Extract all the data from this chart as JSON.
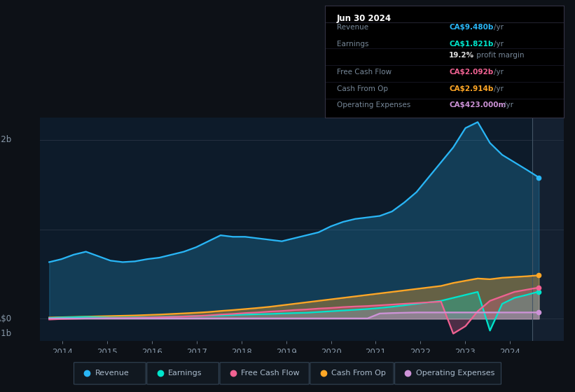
{
  "bg_color": "#0d1117",
  "plot_bg_color": "#0d1b2a",
  "ylim": [
    -1.5,
    13.5
  ],
  "xlim_start": 2013.5,
  "xlim_end": 2025.2,
  "x_ticks": [
    2014,
    2015,
    2016,
    2017,
    2018,
    2019,
    2020,
    2021,
    2022,
    2023,
    2024
  ],
  "hline_y": [
    0,
    6,
    12
  ],
  "revenue_color": "#29b6f6",
  "earnings_color": "#00e5cc",
  "fcf_color": "#f06292",
  "cashfromop_color": "#ffa726",
  "opex_color": "#ce93d8",
  "revenue": [
    3.8,
    4.0,
    4.3,
    4.5,
    4.2,
    3.9,
    3.8,
    3.85,
    4.0,
    4.1,
    4.3,
    4.5,
    4.8,
    5.2,
    5.6,
    5.5,
    5.5,
    5.4,
    5.3,
    5.2,
    5.4,
    5.6,
    5.8,
    6.2,
    6.5,
    6.7,
    6.8,
    6.9,
    7.2,
    7.8,
    8.5,
    9.5,
    10.5,
    11.5,
    12.8,
    13.2,
    11.8,
    11.0,
    10.5,
    10.0,
    9.48
  ],
  "earnings": [
    0.05,
    0.08,
    0.1,
    0.12,
    0.1,
    0.08,
    0.08,
    0.09,
    0.1,
    0.12,
    0.14,
    0.16,
    0.18,
    0.2,
    0.22,
    0.25,
    0.28,
    0.3,
    0.32,
    0.35,
    0.38,
    0.4,
    0.45,
    0.5,
    0.55,
    0.6,
    0.65,
    0.72,
    0.8,
    0.9,
    1.0,
    1.1,
    1.2,
    1.4,
    1.6,
    1.8,
    -0.8,
    1.0,
    1.4,
    1.6,
    1.821
  ],
  "fcf": [
    -0.05,
    -0.02,
    0.0,
    0.02,
    0.03,
    0.04,
    0.05,
    0.06,
    0.08,
    0.1,
    0.12,
    0.15,
    0.18,
    0.22,
    0.28,
    0.32,
    0.38,
    0.42,
    0.48,
    0.52,
    0.58,
    0.62,
    0.68,
    0.72,
    0.78,
    0.82,
    0.85,
    0.9,
    0.95,
    1.0,
    1.05,
    1.1,
    1.15,
    -1.0,
    -0.5,
    0.5,
    1.2,
    1.5,
    1.8,
    1.95,
    2.092
  ],
  "cashfromop": [
    0.08,
    0.1,
    0.12,
    0.14,
    0.16,
    0.18,
    0.2,
    0.22,
    0.25,
    0.28,
    0.32,
    0.36,
    0.4,
    0.45,
    0.52,
    0.58,
    0.65,
    0.72,
    0.8,
    0.9,
    1.0,
    1.1,
    1.2,
    1.3,
    1.4,
    1.5,
    1.6,
    1.7,
    1.8,
    1.9,
    2.0,
    2.1,
    2.2,
    2.4,
    2.55,
    2.7,
    2.65,
    2.75,
    2.8,
    2.85,
    2.914
  ],
  "opex": [
    0.02,
    0.02,
    0.02,
    0.02,
    0.02,
    0.02,
    0.02,
    0.02,
    0.02,
    0.02,
    0.02,
    0.02,
    0.02,
    0.02,
    0.02,
    0.02,
    0.02,
    0.02,
    0.02,
    0.02,
    0.02,
    0.02,
    0.02,
    0.02,
    0.02,
    0.02,
    0.02,
    0.35,
    0.38,
    0.4,
    0.42,
    0.42,
    0.42,
    0.42,
    0.42,
    0.42,
    0.42,
    0.42,
    0.42,
    0.42,
    0.423
  ],
  "n_points": 41,
  "year_start": 2013.7,
  "year_end": 2024.65,
  "tooltip_vline": 2024.5,
  "table_rows": [
    {
      "label": "Revenue",
      "value": "CA$9.480b",
      "unit": "/yr",
      "color": "#29b6f6"
    },
    {
      "label": "Earnings",
      "value": "CA$1.821b",
      "unit": "/yr",
      "color": "#00e5cc"
    },
    {
      "label": "",
      "value": "19.2%",
      "unit": " profit margin",
      "color": "#e0e0e0"
    },
    {
      "label": "Free Cash Flow",
      "value": "CA$2.092b",
      "unit": "/yr",
      "color": "#f06292"
    },
    {
      "label": "Cash From Op",
      "value": "CA$2.914b",
      "unit": "/yr",
      "color": "#ffa726"
    },
    {
      "label": "Operating Expenses",
      "value": "CA$423.000m",
      "unit": "/yr",
      "color": "#ce93d8"
    }
  ],
  "legend_items": [
    {
      "label": "Revenue",
      "color": "#29b6f6"
    },
    {
      "label": "Earnings",
      "color": "#00e5cc"
    },
    {
      "label": "Free Cash Flow",
      "color": "#f06292"
    },
    {
      "label": "Cash From Op",
      "color": "#ffa726"
    },
    {
      "label": "Operating Expenses",
      "color": "#ce93d8"
    }
  ]
}
